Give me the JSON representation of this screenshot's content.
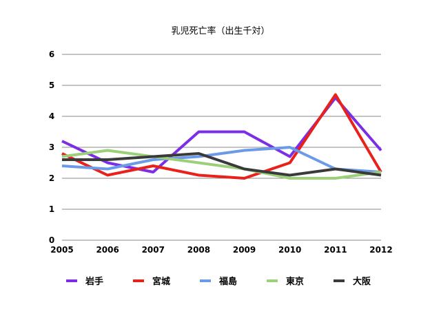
{
  "chart_data": {
    "type": "line",
    "title": "乳児死亡率（出生千対）",
    "xlabel": "",
    "ylabel": "",
    "categories": [
      "2005",
      "2006",
      "2007",
      "2008",
      "2009",
      "2010",
      "2011",
      "2012"
    ],
    "ylim": [
      0,
      6
    ],
    "yticks": [
      "0",
      "1",
      "2",
      "3",
      "4",
      "5",
      "6"
    ],
    "grid": "horizontal",
    "legend_position": "bottom",
    "series": [
      {
        "name": "岩手",
        "color": "#7b2ee6",
        "values": [
          3.2,
          2.5,
          2.2,
          3.5,
          3.5,
          2.7,
          4.6,
          2.9
        ]
      },
      {
        "name": "宮城",
        "color": "#e8211b",
        "values": [
          2.8,
          2.1,
          2.4,
          2.1,
          2.0,
          2.5,
          4.7,
          2.2
        ]
      },
      {
        "name": "福島",
        "color": "#6a9ae8",
        "values": [
          2.4,
          2.3,
          2.6,
          2.7,
          2.9,
          3.0,
          2.3,
          2.2
        ]
      },
      {
        "name": "東京",
        "color": "#9ccf7a",
        "values": [
          2.7,
          2.9,
          2.7,
          2.5,
          2.3,
          2.0,
          2.0,
          2.2
        ]
      },
      {
        "name": "大阪",
        "color": "#3a3a3a",
        "values": [
          2.6,
          2.6,
          2.7,
          2.8,
          2.3,
          2.1,
          2.3,
          2.1
        ]
      }
    ]
  }
}
